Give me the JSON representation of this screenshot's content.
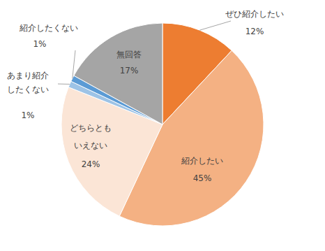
{
  "chart_data": {
    "type": "pie",
    "categories": [
      "ぜひ紹介したい",
      "紹介したい",
      "どちらともいえない",
      "あまり紹介したくない",
      "紹介したくない",
      "無回答"
    ],
    "values": [
      12,
      45,
      24,
      1,
      1,
      17
    ],
    "value_labels": [
      "12%",
      "45%",
      "24%",
      "1%",
      "1%",
      "17%"
    ],
    "colors": [
      "#ED7D31",
      "#F4B183",
      "#FBE5D6",
      "#9DC3E6",
      "#5B9BD5",
      "#A5A5A5"
    ],
    "data_labels": true
  }
}
